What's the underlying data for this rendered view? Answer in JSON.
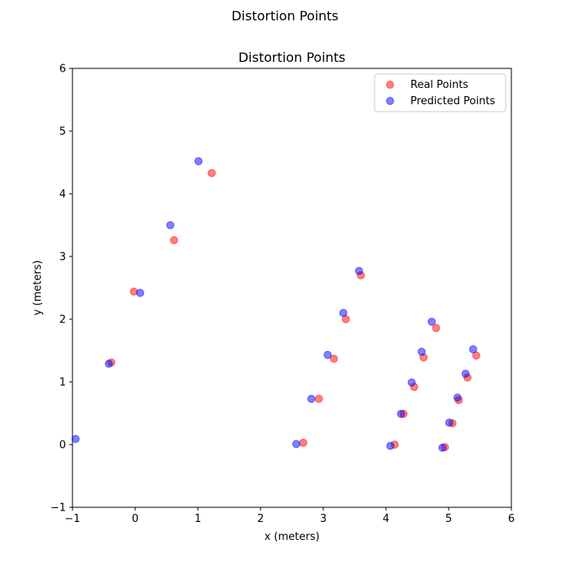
{
  "suptitle": "Distortion Points",
  "chart_data": {
    "type": "scatter",
    "title": "Distortion Points",
    "xlabel": "x (meters)",
    "ylabel": "y (meters)",
    "xlim": [
      -1,
      6
    ],
    "ylim": [
      -1,
      6
    ],
    "xticks": [
      "−1",
      "0",
      "1",
      "2",
      "3",
      "4",
      "5",
      "6"
    ],
    "yticks": [
      "−1",
      "0",
      "1",
      "2",
      "3",
      "4",
      "5",
      "6"
    ],
    "grid": false,
    "legend_placement": "top-right",
    "series": [
      {
        "name": "Real Points",
        "color": "#ff0000",
        "points": [
          [
            -0.38,
            1.31
          ],
          [
            -0.02,
            2.44
          ],
          [
            0.62,
            3.26
          ],
          [
            1.22,
            4.33
          ],
          [
            2.68,
            0.03
          ],
          [
            2.93,
            0.73
          ],
          [
            3.17,
            1.37
          ],
          [
            3.36,
            2.0
          ],
          [
            3.6,
            2.7
          ],
          [
            4.14,
            0.0
          ],
          [
            4.28,
            0.49
          ],
          [
            4.45,
            0.92
          ],
          [
            4.6,
            1.39
          ],
          [
            4.8,
            1.86
          ],
          [
            4.94,
            -0.04
          ],
          [
            5.06,
            0.34
          ],
          [
            5.16,
            0.71
          ],
          [
            5.3,
            1.07
          ],
          [
            5.44,
            1.42
          ]
        ]
      },
      {
        "name": "Predicted Points",
        "color": "#0000ff",
        "points": [
          [
            -0.95,
            0.09
          ],
          [
            -0.42,
            1.29
          ],
          [
            0.08,
            2.42
          ],
          [
            0.56,
            3.5
          ],
          [
            1.01,
            4.52
          ],
          [
            2.57,
            0.01
          ],
          [
            2.81,
            0.73
          ],
          [
            3.07,
            1.43
          ],
          [
            3.32,
            2.1
          ],
          [
            3.57,
            2.77
          ],
          [
            4.07,
            -0.02
          ],
          [
            4.24,
            0.49
          ],
          [
            4.41,
            0.99
          ],
          [
            4.57,
            1.48
          ],
          [
            4.73,
            1.96
          ],
          [
            4.9,
            -0.05
          ],
          [
            5.01,
            0.35
          ],
          [
            5.14,
            0.75
          ],
          [
            5.27,
            1.13
          ],
          [
            5.39,
            1.52
          ]
        ]
      }
    ]
  }
}
